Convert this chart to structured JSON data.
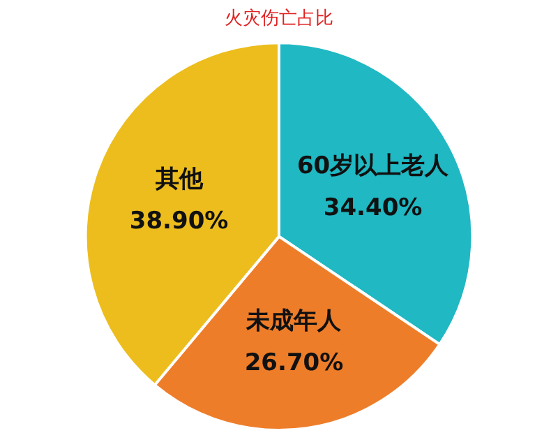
{
  "chart_data": {
    "type": "pie",
    "title": "火灾伤亡占比",
    "categories": [
      "60岁以上老人",
      "未成年人",
      "其他"
    ],
    "values": [
      34.4,
      26.7,
      38.9
    ],
    "colors": [
      "#1fb8c3",
      "#ee7d2a",
      "#ecbd1d"
    ],
    "value_labels": [
      "34.40%",
      "26.70%",
      "38.90%"
    ],
    "legend": false
  }
}
